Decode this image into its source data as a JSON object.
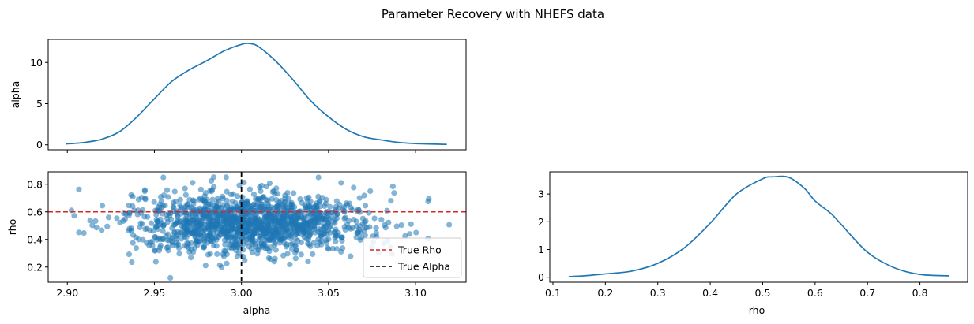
{
  "figure": {
    "suptitle": "Parameter Recovery with NHEFS data",
    "colors": {
      "series": "#1f77b4",
      "true_rho": "#d62728",
      "true_alpha": "#000000",
      "axes": "#000000",
      "background": "#ffffff"
    }
  },
  "chart_data": [
    {
      "id": "top",
      "type": "line",
      "title": "",
      "xlabel": "",
      "ylabel": "alpha",
      "xlim": [
        2.889,
        3.129
      ],
      "ylim": [
        -0.6,
        12.8
      ],
      "xticks": [
        2.9,
        2.95,
        3.0,
        3.05,
        3.1
      ],
      "xtick_labels_visible": false,
      "yticks": [
        0,
        5,
        10
      ],
      "ytick_labels": [
        "0",
        "5",
        "10"
      ],
      "series": [
        {
          "values_x": [
            2.899,
            2.91,
            2.92,
            2.93,
            2.94,
            2.95,
            2.96,
            2.97,
            2.98,
            2.99,
            3.0,
            3.005,
            3.01,
            3.02,
            3.03,
            3.04,
            3.05,
            3.06,
            3.07,
            3.08,
            3.09,
            3.1,
            3.118
          ],
          "values_y": [
            0.1,
            0.3,
            0.7,
            1.6,
            3.4,
            5.6,
            7.7,
            9.1,
            10.2,
            11.4,
            12.2,
            12.3,
            11.9,
            10.1,
            7.8,
            5.3,
            3.4,
            1.9,
            1.0,
            0.6,
            0.3,
            0.15,
            0.05
          ]
        }
      ],
      "grid": false
    },
    {
      "id": "bottom-left",
      "type": "scatter",
      "title": "",
      "xlabel": "alpha",
      "ylabel": "rho",
      "xlim": [
        2.889,
        3.129
      ],
      "ylim": [
        0.09,
        0.89
      ],
      "xticks": [
        2.9,
        2.95,
        3.0,
        3.05,
        3.1
      ],
      "xtick_labels": [
        "2.90",
        "2.95",
        "3.00",
        "3.05",
        "3.10"
      ],
      "yticks": [
        0.2,
        0.4,
        0.6,
        0.8
      ],
      "ytick_labels": [
        "0.2",
        "0.4",
        "0.6",
        "0.8"
      ],
      "points": {
        "n": 1400,
        "x_mean": 3.005,
        "x_sd": 0.033,
        "y_mean": 0.52,
        "y_sd": 0.11,
        "note_hidden": true
      },
      "reference_lines": [
        {
          "name": "True Rho",
          "orientation": "horizontal",
          "value": 0.6,
          "style": "dashed",
          "color": "#d62728"
        },
        {
          "name": "True Alpha",
          "orientation": "vertical",
          "value": 3.0,
          "style": "dashed",
          "color": "#000000"
        }
      ],
      "legend": {
        "placement": "lower-right",
        "entries": [
          "True Rho",
          "True Alpha"
        ]
      },
      "grid": false
    },
    {
      "id": "bottom-right",
      "type": "line",
      "title": "",
      "xlabel": "rho",
      "ylabel": "",
      "xlim": [
        0.094,
        0.891
      ],
      "ylim": [
        -0.18,
        3.8
      ],
      "xticks": [
        0.1,
        0.2,
        0.3,
        0.4,
        0.5,
        0.6,
        0.7,
        0.8
      ],
      "xtick_labels": [
        "0.1",
        "0.2",
        "0.3",
        "0.4",
        "0.5",
        "0.6",
        "0.7",
        "0.8"
      ],
      "yticks": [
        0,
        1,
        2,
        3
      ],
      "ytick_labels": [
        "0",
        "1",
        "2",
        "3"
      ],
      "series": [
        {
          "values_x": [
            0.13,
            0.16,
            0.2,
            0.25,
            0.3,
            0.35,
            0.4,
            0.45,
            0.5,
            0.52,
            0.55,
            0.58,
            0.6,
            0.63,
            0.65,
            0.7,
            0.75,
            0.8,
            0.855
          ],
          "values_y": [
            0.02,
            0.05,
            0.12,
            0.22,
            0.5,
            1.05,
            1.95,
            3.0,
            3.55,
            3.62,
            3.6,
            3.2,
            2.75,
            2.3,
            1.9,
            0.9,
            0.35,
            0.1,
            0.05
          ]
        }
      ],
      "grid": false
    }
  ]
}
